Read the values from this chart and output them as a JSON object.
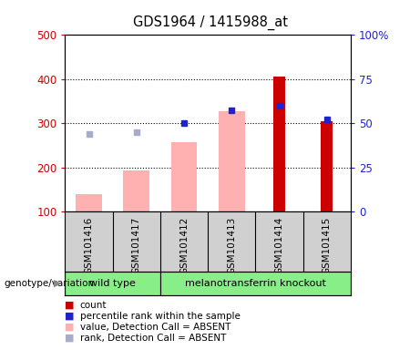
{
  "title": "GDS1964 / 1415988_at",
  "samples": [
    "GSM101416",
    "GSM101417",
    "GSM101412",
    "GSM101413",
    "GSM101414",
    "GSM101415"
  ],
  "ylim_left": [
    100,
    500
  ],
  "ylim_right": [
    0,
    100
  ],
  "yticks_left": [
    100,
    200,
    300,
    400,
    500
  ],
  "yticks_right": [
    0,
    25,
    50,
    75,
    100
  ],
  "yticklabels_right": [
    "0",
    "25",
    "50",
    "75",
    "100%"
  ],
  "bar_value_absent": [
    140,
    193,
    258,
    327,
    null,
    null
  ],
  "dot_rank_absent_y": [
    275,
    280,
    null,
    null,
    null,
    null
  ],
  "bar_count": [
    null,
    null,
    null,
    null,
    405,
    305
  ],
  "dot_percentile": [
    null,
    null,
    300,
    330,
    340,
    308
  ],
  "axis_color_left": "#cc0000",
  "axis_color_right": "#2222cc",
  "bar_color_absent": "#ffb0b0",
  "dot_color_rank_absent": "#aaaacc",
  "bar_color_count": "#cc0000",
  "dot_color_percentile": "#2222cc",
  "bg_plot": "#ffffff",
  "bg_xaxis": "#d0d0d0",
  "bg_geno": "#ffffff",
  "geno_box_color": "#88ee88",
  "grid_lines": [
    200,
    300,
    400
  ],
  "legend_colors": [
    "#cc0000",
    "#2222cc",
    "#ffb0b0",
    "#aaaacc"
  ],
  "legend_labels": [
    "count",
    "percentile rank within the sample",
    "value, Detection Call = ABSENT",
    "rank, Detection Call = ABSENT"
  ],
  "genotype_label": "genotype/variation",
  "wt_indices": [
    0,
    1
  ],
  "mt_indices": [
    2,
    3,
    4,
    5
  ]
}
